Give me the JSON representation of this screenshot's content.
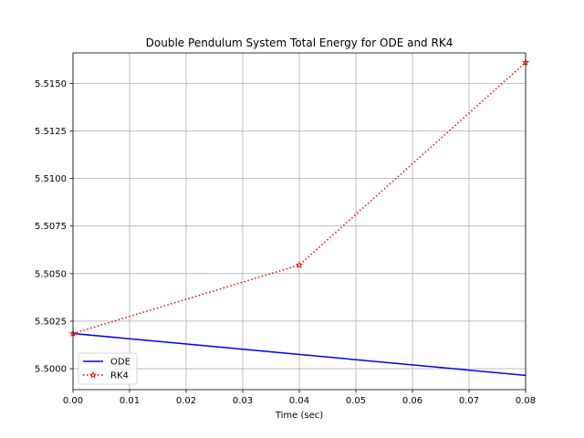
{
  "chart_data": {
    "type": "line",
    "title": "Double Pendulum System Total Energy for ODE and RK4",
    "xlabel": "Time (sec)",
    "ylabel": "",
    "xlim": [
      0,
      0.08
    ],
    "ylim": [
      5.4989,
      5.5166
    ],
    "xticks": [
      0,
      0.01,
      0.02,
      0.03,
      0.04,
      0.05,
      0.06,
      0.07,
      0.08
    ],
    "xtick_labels": [
      "0.00",
      "0.01",
      "0.02",
      "0.03",
      "0.04",
      "0.05",
      "0.06",
      "0.07",
      "0.08"
    ],
    "yticks": [
      5.5,
      5.5025,
      5.505,
      5.5075,
      5.51,
      5.5125,
      5.515
    ],
    "ytick_labels": [
      "5.5000",
      "5.5025",
      "5.5050",
      "5.5075",
      "5.5100",
      "5.5125",
      "5.5150"
    ],
    "grid": true,
    "legend_position": "lower-left",
    "series": [
      {
        "name": "ODE",
        "color": "#0000ff",
        "line_style": "solid",
        "marker": "none",
        "x": [
          0,
          0.08
        ],
        "y": [
          5.50185,
          5.49965
        ]
      },
      {
        "name": "RK4",
        "color": "#ff0000",
        "line_style": "dotted",
        "marker": "star",
        "x": [
          0,
          0.04,
          0.08
        ],
        "y": [
          5.50185,
          5.50545,
          5.5161
        ]
      }
    ]
  }
}
